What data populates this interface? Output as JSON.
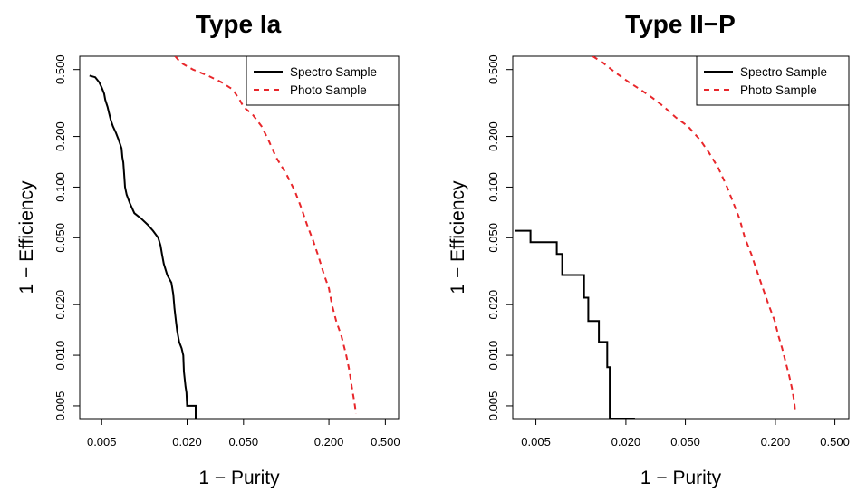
{
  "chart_data": [
    {
      "type": "line",
      "title": "Type Ia",
      "xlabel": "1 − Purity",
      "ylabel": "1 − Efficiency",
      "x_scale": "log",
      "y_scale": "log",
      "xlim": [
        0.0035,
        0.62
      ],
      "ylim": [
        0.0042,
        0.6
      ],
      "x_ticks": [
        0.005,
        0.02,
        0.05,
        0.2,
        0.5
      ],
      "x_tick_labels": [
        "0.005",
        "0.020",
        "0.050",
        "0.200",
        "0.500"
      ],
      "y_ticks": [
        0.005,
        0.01,
        0.02,
        0.05,
        0.1,
        0.2,
        0.5
      ],
      "y_tick_labels": [
        "0.005",
        "0.010",
        "0.020",
        "0.050",
        "0.100",
        "0.200",
        "0.500"
      ],
      "legend": "top-right",
      "grid": false,
      "series": [
        {
          "name": "Spectro Sample",
          "color": "#000000",
          "style": "solid-step",
          "points": [
            [
              0.0041,
              0.46
            ],
            [
              0.0045,
              0.45
            ],
            [
              0.0048,
              0.42
            ],
            [
              0.005,
              0.39
            ],
            [
              0.0052,
              0.36
            ],
            [
              0.0053,
              0.33
            ],
            [
              0.0055,
              0.3
            ],
            [
              0.0056,
              0.28
            ],
            [
              0.0058,
              0.25
            ],
            [
              0.006,
              0.23
            ],
            [
              0.0063,
              0.21
            ],
            [
              0.0066,
              0.19
            ],
            [
              0.0069,
              0.17
            ],
            [
              0.007,
              0.15
            ],
            [
              0.0071,
              0.14
            ],
            [
              0.0072,
              0.12
            ],
            [
              0.0073,
              0.1
            ],
            [
              0.0075,
              0.09
            ],
            [
              0.0079,
              0.08
            ],
            [
              0.0085,
              0.07
            ],
            [
              0.0095,
              0.065
            ],
            [
              0.0105,
              0.06
            ],
            [
              0.0115,
              0.055
            ],
            [
              0.0125,
              0.05
            ],
            [
              0.013,
              0.045
            ],
            [
              0.0133,
              0.04
            ],
            [
              0.0137,
              0.035
            ],
            [
              0.0145,
              0.03
            ],
            [
              0.0155,
              0.027
            ],
            [
              0.016,
              0.023
            ],
            [
              0.0163,
              0.019
            ],
            [
              0.0167,
              0.016
            ],
            [
              0.017,
              0.014
            ],
            [
              0.0176,
              0.012
            ],
            [
              0.0183,
              0.011
            ],
            [
              0.0188,
              0.01
            ],
            [
              0.019,
              0.008
            ],
            [
              0.0195,
              0.0065
            ],
            [
              0.0198,
              0.006
            ],
            [
              0.02,
              0.005
            ],
            [
              0.023,
              0.005
            ],
            [
              0.023,
              0.0042
            ]
          ]
        },
        {
          "name": "Photo Sample",
          "color": "#e8272b",
          "style": "dashed",
          "points": [
            [
              0.0165,
              0.6
            ],
            [
              0.018,
              0.55
            ],
            [
              0.022,
              0.5
            ],
            [
              0.028,
              0.46
            ],
            [
              0.035,
              0.42
            ],
            [
              0.042,
              0.38
            ],
            [
              0.047,
              0.33
            ],
            [
              0.05,
              0.3
            ],
            [
              0.058,
              0.27
            ],
            [
              0.067,
              0.23
            ],
            [
              0.075,
              0.19
            ],
            [
              0.085,
              0.15
            ],
            [
              0.1,
              0.12
            ],
            [
              0.115,
              0.095
            ],
            [
              0.128,
              0.075
            ],
            [
              0.14,
              0.06
            ],
            [
              0.155,
              0.048
            ],
            [
              0.17,
              0.038
            ],
            [
              0.185,
              0.03
            ],
            [
              0.2,
              0.025
            ],
            [
              0.21,
              0.02
            ],
            [
              0.225,
              0.016
            ],
            [
              0.245,
              0.013
            ],
            [
              0.265,
              0.01
            ],
            [
              0.28,
              0.008
            ],
            [
              0.29,
              0.0065
            ],
            [
              0.3,
              0.0055
            ],
            [
              0.305,
              0.005
            ],
            [
              0.31,
              0.0045
            ]
          ]
        }
      ]
    },
    {
      "type": "line",
      "title": "Type II−P",
      "xlabel": "1 − Purity",
      "ylabel": "1 − Efficiency",
      "x_scale": "log",
      "y_scale": "log",
      "xlim": [
        0.0035,
        0.62
      ],
      "ylim": [
        0.0042,
        0.6
      ],
      "x_ticks": [
        0.005,
        0.02,
        0.05,
        0.2,
        0.5
      ],
      "x_tick_labels": [
        "0.005",
        "0.020",
        "0.050",
        "0.200",
        "0.500"
      ],
      "y_ticks": [
        0.005,
        0.01,
        0.02,
        0.05,
        0.1,
        0.2,
        0.5
      ],
      "y_tick_labels": [
        "0.005",
        "0.010",
        "0.020",
        "0.050",
        "0.100",
        "0.200",
        "0.500"
      ],
      "legend": "top-right",
      "grid": false,
      "series": [
        {
          "name": "Spectro Sample",
          "color": "#000000",
          "style": "solid-step",
          "points": [
            [
              0.0036,
              0.055
            ],
            [
              0.0046,
              0.055
            ],
            [
              0.0046,
              0.047
            ],
            [
              0.0069,
              0.047
            ],
            [
              0.0069,
              0.04
            ],
            [
              0.0075,
              0.04
            ],
            [
              0.0075,
              0.03
            ],
            [
              0.0105,
              0.03
            ],
            [
              0.0105,
              0.022
            ],
            [
              0.0112,
              0.022
            ],
            [
              0.0112,
              0.016
            ],
            [
              0.0132,
              0.016
            ],
            [
              0.0132,
              0.012
            ],
            [
              0.015,
              0.012
            ],
            [
              0.015,
              0.0085
            ],
            [
              0.0156,
              0.0085
            ],
            [
              0.0156,
              0.0042
            ],
            [
              0.023,
              0.0042
            ]
          ]
        },
        {
          "name": "Photo Sample",
          "color": "#e8272b",
          "style": "dashed",
          "points": [
            [
              0.012,
              0.6
            ],
            [
              0.014,
              0.55
            ],
            [
              0.017,
              0.48
            ],
            [
              0.021,
              0.42
            ],
            [
              0.025,
              0.38
            ],
            [
              0.03,
              0.34
            ],
            [
              0.036,
              0.3
            ],
            [
              0.043,
              0.26
            ],
            [
              0.052,
              0.23
            ],
            [
              0.063,
              0.19
            ],
            [
              0.072,
              0.16
            ],
            [
              0.083,
              0.13
            ],
            [
              0.095,
              0.1
            ],
            [
              0.105,
              0.08
            ],
            [
              0.115,
              0.065
            ],
            [
              0.125,
              0.05
            ],
            [
              0.138,
              0.04
            ],
            [
              0.15,
              0.032
            ],
            [
              0.165,
              0.025
            ],
            [
              0.18,
              0.02
            ],
            [
              0.198,
              0.016
            ],
            [
              0.21,
              0.013
            ],
            [
              0.222,
              0.011
            ],
            [
              0.235,
              0.009
            ],
            [
              0.248,
              0.0075
            ],
            [
              0.26,
              0.0062
            ],
            [
              0.268,
              0.0052
            ],
            [
              0.272,
              0.0045
            ]
          ]
        }
      ]
    }
  ]
}
